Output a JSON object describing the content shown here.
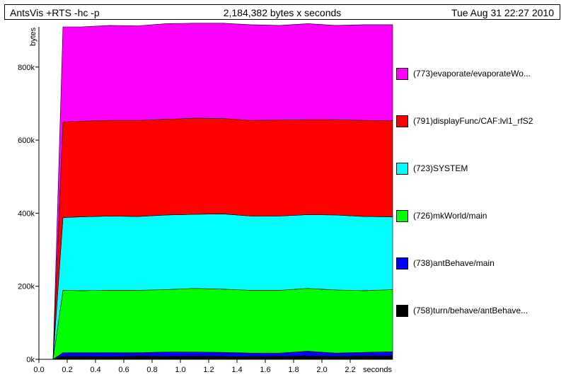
{
  "header": {
    "program": "AntsVis +RTS -hc -p",
    "total": "2,184,382 bytes x seconds",
    "date": "Tue Aug 31 22:27 2010"
  },
  "chart_data": {
    "type": "area",
    "stacked": true,
    "xlabel": "seconds",
    "ylabel": "bytes",
    "xlim": [
      0,
      2.5
    ],
    "ylim": [
      0,
      910000
    ],
    "x_ticks": [
      0,
      0.2,
      0.4,
      0.6,
      0.8,
      1.0,
      1.2,
      1.4,
      1.6,
      1.8,
      2.0,
      2.2
    ],
    "x_tick_labels": [
      "0.0",
      "0.2",
      "0.4",
      "0.6",
      "0.8",
      "1.0",
      "1.2",
      "1.4",
      "1.6",
      "1.8",
      "2.0",
      "2.2"
    ],
    "y_ticks": [
      0,
      200000,
      400000,
      600000,
      800000
    ],
    "y_tick_labels": [
      "0k",
      "200k",
      "400k",
      "600k",
      "800k"
    ],
    "legend_position": "right",
    "x": [
      0.1,
      0.17,
      0.3,
      0.5,
      0.7,
      0.9,
      1.1,
      1.3,
      1.5,
      1.7,
      1.9,
      2.1,
      2.3,
      2.5
    ],
    "series": [
      {
        "name": "(758)turn/behave/antBehave...",
        "color": "#000000",
        "values": [
          0,
          8000,
          8000,
          7000,
          9000,
          8000,
          9000,
          8000,
          7000,
          8000,
          9000,
          8000,
          9000,
          9000
        ]
      },
      {
        "name": "(738)antBehave/main",
        "color": "#0000ff",
        "values": [
          0,
          10000,
          10000,
          11000,
          9000,
          12000,
          11000,
          11000,
          10000,
          9000,
          13000,
          9000,
          10000,
          12000
        ]
      },
      {
        "name": "(726)mkWorld/main",
        "color": "#00ff00",
        "values": [
          0,
          171000,
          170000,
          171000,
          171000,
          171000,
          174000,
          173000,
          172000,
          172000,
          172000,
          173000,
          169000,
          170000
        ]
      },
      {
        "name": "(723)SYSTEM",
        "color": "#00ffff",
        "values": [
          0,
          199000,
          202000,
          203000,
          202000,
          204000,
          203000,
          206000,
          203000,
          203000,
          202000,
          205000,
          203000,
          199000
        ]
      },
      {
        "name": "(791)displayFunc/CAF:lvl1_rfS2",
        "color": "#ff0000",
        "values": [
          0,
          262000,
          262000,
          262000,
          263000,
          262000,
          263000,
          261000,
          262000,
          263000,
          260000,
          261000,
          263000,
          263000
        ]
      },
      {
        "name": "(773)evaporate/evaporateWo...",
        "color": "#ff00ff",
        "values": [
          0,
          260000,
          258000,
          260000,
          259000,
          262000,
          260000,
          261000,
          262000,
          259000,
          263000,
          258000,
          262000,
          263000
        ]
      }
    ]
  }
}
